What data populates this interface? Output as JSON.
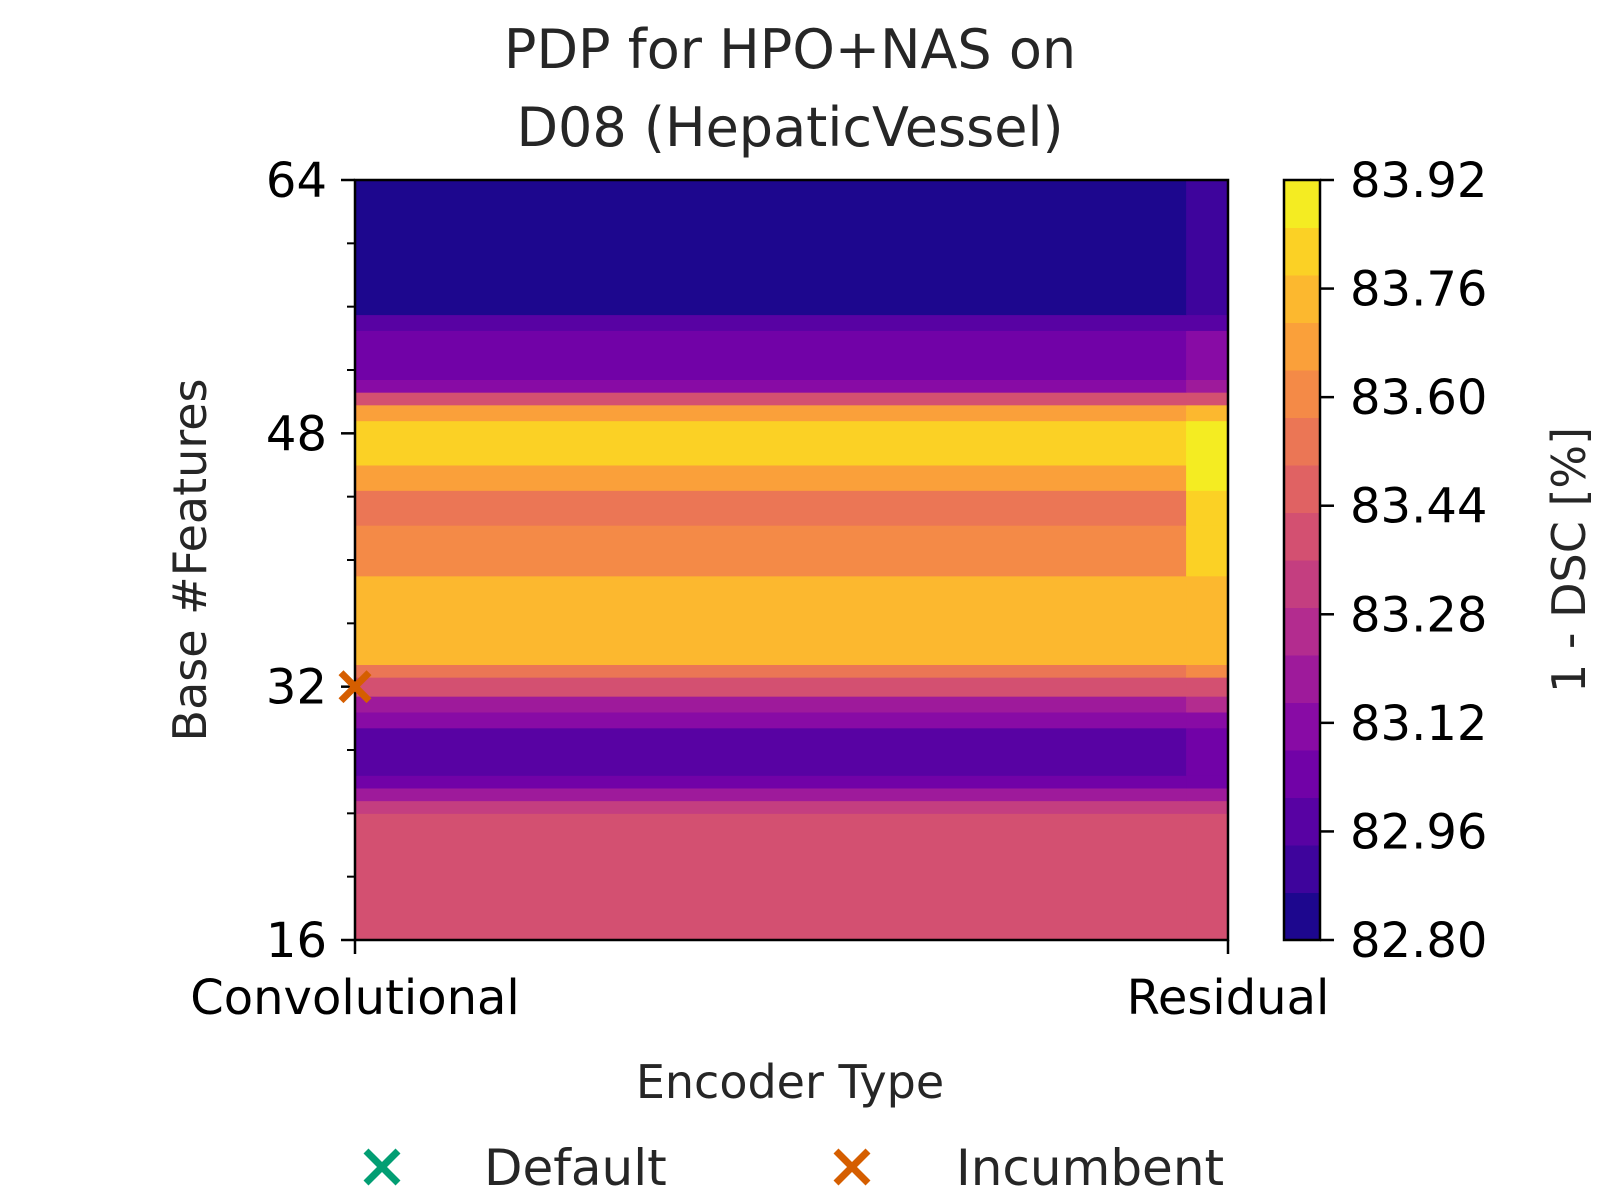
{
  "chart_data": {
    "type": "heatmap",
    "title_lines": [
      "PDP for HPO+NAS on",
      "D08 (HepaticVessel)"
    ],
    "xlabel": "Encoder Type",
    "ylabel": "Base #Features",
    "x_categories": [
      "Convolutional",
      "Residual"
    ],
    "y_ticks": [
      16,
      32,
      48,
      64
    ],
    "ylim": [
      16,
      64
    ],
    "colorbar": {
      "label": "1 - DSC [%]",
      "colormap": "plasma",
      "range": [
        82.8,
        83.92
      ],
      "tick_labels": [
        "82.80",
        "82.96",
        "83.12",
        "83.28",
        "83.44",
        "83.60",
        "83.76",
        "83.92"
      ],
      "ticks": [
        82.8,
        82.96,
        83.12,
        83.28,
        83.44,
        83.6,
        83.76,
        83.92
      ],
      "levels": 16
    },
    "bands": [
      {
        "y": [
          16.0,
          24.0
        ],
        "conv": 83.42,
        "res": 83.42
      },
      {
        "y": [
          24.0,
          24.8
        ],
        "conv": 83.3,
        "res": 83.3
      },
      {
        "y": [
          24.8,
          25.6
        ],
        "conv": 83.16,
        "res": 83.16
      },
      {
        "y": [
          25.6,
          26.4
        ],
        "conv": 83.02,
        "res": 83.06
      },
      {
        "y": [
          26.4,
          28.0
        ],
        "conv": 82.98,
        "res": 83.04
      },
      {
        "y": [
          28.0,
          29.4
        ],
        "conv": 83.0,
        "res": 83.06
      },
      {
        "y": [
          29.4,
          30.4
        ],
        "conv": 83.08,
        "res": 83.12
      },
      {
        "y": [
          30.4,
          31.4
        ],
        "conv": 83.2,
        "res": 83.22
      },
      {
        "y": [
          31.4,
          32.6
        ],
        "conv": 83.36,
        "res": 83.38
      },
      {
        "y": [
          32.6,
          33.4
        ],
        "conv": 83.56,
        "res": 83.58
      },
      {
        "y": [
          33.4,
          39.0
        ],
        "conv": 83.72,
        "res": 83.76
      },
      {
        "y": [
          39.0,
          42.2
        ],
        "conv": 83.62,
        "res": 83.82
      },
      {
        "y": [
          42.2,
          44.4
        ],
        "conv": 83.54,
        "res": 83.84
      },
      {
        "y": [
          44.4,
          46.0
        ],
        "conv": 83.66,
        "res": 83.86
      },
      {
        "y": [
          46.0,
          48.8
        ],
        "conv": 83.84,
        "res": 83.9
      },
      {
        "y": [
          48.8,
          49.8
        ],
        "conv": 83.7,
        "res": 83.72
      },
      {
        "y": [
          49.8,
          50.6
        ],
        "conv": 83.4,
        "res": 83.42
      },
      {
        "y": [
          50.6,
          51.4
        ],
        "conv": 83.14,
        "res": 83.16
      },
      {
        "y": [
          51.4,
          54.5
        ],
        "conv": 83.04,
        "res": 83.08
      },
      {
        "y": [
          54.5,
          55.5
        ],
        "conv": 82.96,
        "res": 82.98
      },
      {
        "y": [
          55.5,
          64.0
        ],
        "conv": 82.84,
        "res": 82.9
      }
    ],
    "markers": [
      {
        "name": "Incumbent",
        "encoder": "Convolutional",
        "base_features": 32,
        "color": "#d55e00"
      }
    ],
    "legend": {
      "position": "bottom",
      "entries": [
        {
          "label": "Default",
          "marker": "x",
          "color": "#029e73"
        },
        {
          "label": "Incumbent",
          "marker": "x",
          "color": "#d55e00"
        }
      ]
    }
  }
}
